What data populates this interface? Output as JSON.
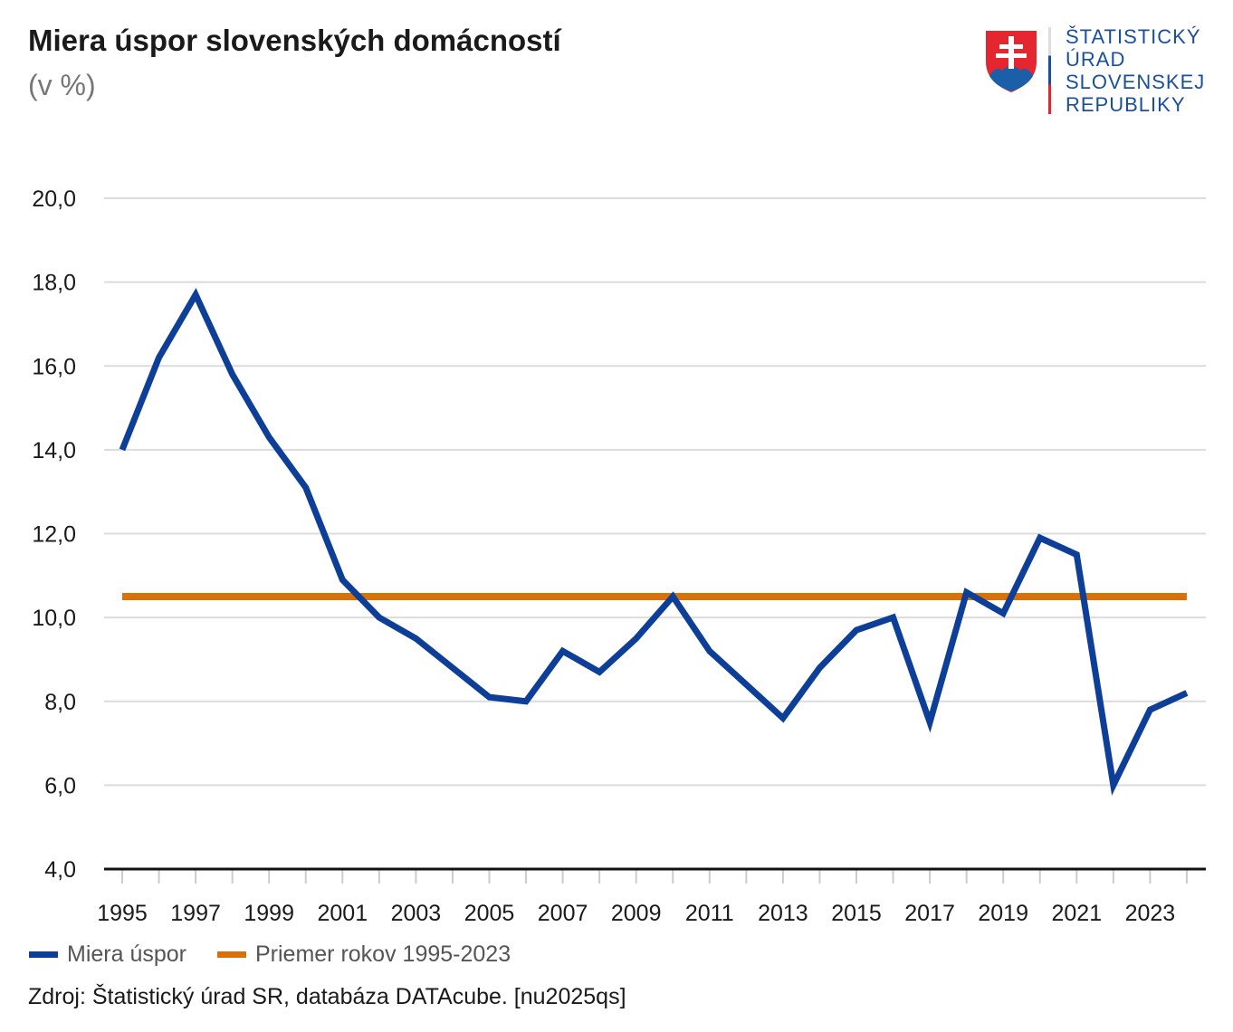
{
  "title": "Miera úspor slovenských domácností",
  "subtitle": "(v %)",
  "logo": {
    "lines": [
      "ŠTATISTICKÝ",
      "ÚRAD",
      "SLOVENSKEJ",
      "REPUBLIKY"
    ]
  },
  "source": "Zdroj: Štatistický úrad SR, databáza DATAcube. [nu2025qs]",
  "chart_data": {
    "type": "line",
    "title": "Miera úspor slovenských domácností",
    "ylabel": "(v %)",
    "ylim": [
      4,
      20
    ],
    "yticks": [
      "4,0",
      "6,0",
      "8,0",
      "10,0",
      "12,0",
      "14,0",
      "16,0",
      "18,0",
      "20,0"
    ],
    "ytick_values": [
      4,
      6,
      8,
      10,
      12,
      14,
      16,
      18,
      20
    ],
    "xticks": [
      "1995",
      "1997",
      "1999",
      "2001",
      "2003",
      "2005",
      "2007",
      "2009",
      "2011",
      "2013",
      "2015",
      "2017",
      "2019",
      "2021",
      "2023"
    ],
    "grid": true,
    "legend_placement": "bottom-left",
    "x": [
      1995,
      1996,
      1997,
      1998,
      1999,
      2000,
      2001,
      2002,
      2003,
      2004,
      2005,
      2006,
      2007,
      2008,
      2009,
      2010,
      2011,
      2012,
      2013,
      2014,
      2015,
      2016,
      2017,
      2018,
      2019,
      2020,
      2021,
      2022,
      2023,
      2024
    ],
    "series": [
      {
        "name": "Miera úspor",
        "color": "#0d3f99",
        "values": [
          14.0,
          16.2,
          17.7,
          15.8,
          14.3,
          13.1,
          10.9,
          10.0,
          9.5,
          8.8,
          8.1,
          8.0,
          9.2,
          8.7,
          9.5,
          10.5,
          9.2,
          8.4,
          7.6,
          8.8,
          9.7,
          10.0,
          7.5,
          10.6,
          10.1,
          11.9,
          11.5,
          6.0,
          7.8,
          8.2
        ]
      },
      {
        "name": "Priemer rokov 1995-2023",
        "color": "#d9700a",
        "values": [
          10.5,
          10.5,
          10.5,
          10.5,
          10.5,
          10.5,
          10.5,
          10.5,
          10.5,
          10.5,
          10.5,
          10.5,
          10.5,
          10.5,
          10.5,
          10.5,
          10.5,
          10.5,
          10.5,
          10.5,
          10.5,
          10.5,
          10.5,
          10.5,
          10.5,
          10.5,
          10.5,
          10.5,
          10.5,
          10.5
        ]
      }
    ]
  }
}
